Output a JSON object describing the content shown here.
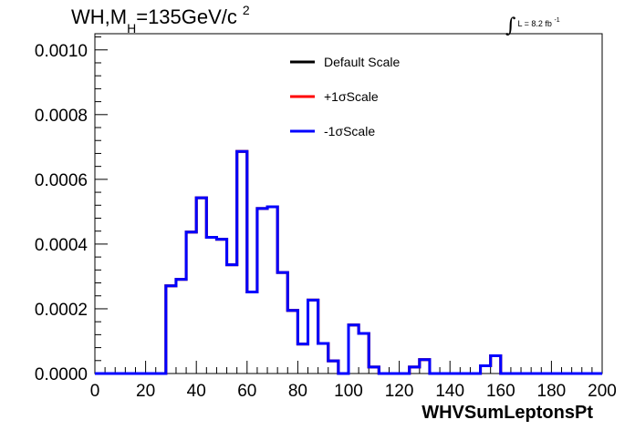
{
  "title": {
    "main_pre": "WH,M",
    "main_sub": "H",
    "main_post": "=135GeV/c",
    "main_sup": "2"
  },
  "lumi": {
    "symbol": "∫",
    "text": "L = 8.2 fb",
    "sup": "-1"
  },
  "chart_data": {
    "type": "line",
    "title": "WH,M_H=135GeV/c^2",
    "xlabel": "WHVSumLeptonsPt",
    "ylabel": "",
    "xlim": [
      0,
      200
    ],
    "ylim": [
      0,
      0.00105
    ],
    "bin_width": 4,
    "x_ticks": [
      0,
      20,
      40,
      60,
      80,
      100,
      120,
      140,
      160,
      180,
      200
    ],
    "x_tick_labels": [
      "0",
      "20",
      "40",
      "60",
      "80",
      "100",
      "120",
      "140",
      "160",
      "180",
      "200"
    ],
    "y_ticks": [
      0,
      0.0002,
      0.0004,
      0.0006,
      0.0008,
      0.001
    ],
    "y_tick_labels": [
      "0.0000",
      "0.0002",
      "0.0004",
      "0.0006",
      "0.0008",
      "0.0010"
    ],
    "grid": false,
    "legend_position": "top-center",
    "series": [
      {
        "name": "Default Scale",
        "color": "#000000",
        "bin_edges": [
          0,
          4,
          8,
          12,
          16,
          20,
          24,
          28,
          32,
          36,
          40,
          44,
          48,
          52,
          56,
          60,
          64,
          68,
          72,
          76,
          80,
          84,
          88,
          92,
          96,
          100,
          104,
          108,
          112,
          116,
          120,
          124,
          128,
          132,
          136,
          140,
          144,
          148,
          152,
          156,
          160,
          164,
          168,
          172,
          176,
          180,
          184,
          188,
          192,
          196,
          200
        ],
        "values": [
          0,
          0,
          0,
          0,
          0,
          0,
          0,
          0.000271,
          0.000291,
          0.000437,
          0.000543,
          0.000421,
          0.000415,
          0.000336,
          0.000686,
          0.000252,
          0.00051,
          0.000515,
          0.000312,
          0.000195,
          9.1e-05,
          0.000227,
          9.3e-05,
          3.9e-05,
          0,
          0.00015,
          0.000124,
          2e-05,
          0,
          0,
          0,
          2e-05,
          4.3e-05,
          0,
          0,
          0,
          0,
          0,
          2.4e-05,
          5.5e-05,
          0,
          0,
          0,
          0,
          0,
          0,
          0,
          0,
          0,
          0
        ]
      },
      {
        "name": "+1σScale",
        "color": "#ff0000",
        "bin_edges": [
          0,
          4,
          8,
          12,
          16,
          20,
          24,
          28,
          32,
          36,
          40,
          44,
          48,
          52,
          56,
          60,
          64,
          68,
          72,
          76,
          80,
          84,
          88,
          92,
          96,
          100,
          104,
          108,
          112,
          116,
          120,
          124,
          128,
          132,
          136,
          140,
          144,
          148,
          152,
          156,
          160,
          164,
          168,
          172,
          176,
          180,
          184,
          188,
          192,
          196,
          200
        ],
        "values": [
          0,
          0,
          0,
          0,
          0,
          0,
          0,
          0.000271,
          0.000291,
          0.000437,
          0.000543,
          0.000421,
          0.000415,
          0.000336,
          0.000686,
          0.000252,
          0.00051,
          0.000515,
          0.000312,
          0.000195,
          9.1e-05,
          0.000227,
          9.3e-05,
          3.9e-05,
          0,
          0.00015,
          0.000124,
          2e-05,
          0,
          0,
          0,
          2e-05,
          4.3e-05,
          0,
          0,
          0,
          0,
          0,
          2.4e-05,
          5.5e-05,
          0,
          0,
          0,
          0,
          0,
          0,
          0,
          0,
          0,
          0
        ]
      },
      {
        "name": "-1σScale",
        "color": "#0000ff",
        "bin_edges": [
          0,
          4,
          8,
          12,
          16,
          20,
          24,
          28,
          32,
          36,
          40,
          44,
          48,
          52,
          56,
          60,
          64,
          68,
          72,
          76,
          80,
          84,
          88,
          92,
          96,
          100,
          104,
          108,
          112,
          116,
          120,
          124,
          128,
          132,
          136,
          140,
          144,
          148,
          152,
          156,
          160,
          164,
          168,
          172,
          176,
          180,
          184,
          188,
          192,
          196,
          200
        ],
        "values": [
          0,
          0,
          0,
          0,
          0,
          0,
          0,
          0.000271,
          0.000291,
          0.000437,
          0.000543,
          0.000421,
          0.000415,
          0.000336,
          0.000686,
          0.000252,
          0.00051,
          0.000515,
          0.000312,
          0.000195,
          9.1e-05,
          0.000227,
          9.3e-05,
          3.9e-05,
          0,
          0.00015,
          0.000124,
          2e-05,
          0,
          0,
          0,
          2e-05,
          4.3e-05,
          0,
          0,
          0,
          0,
          0,
          2.4e-05,
          5.5e-05,
          0,
          0,
          0,
          0,
          0,
          0,
          0,
          0,
          0,
          0
        ]
      }
    ]
  }
}
